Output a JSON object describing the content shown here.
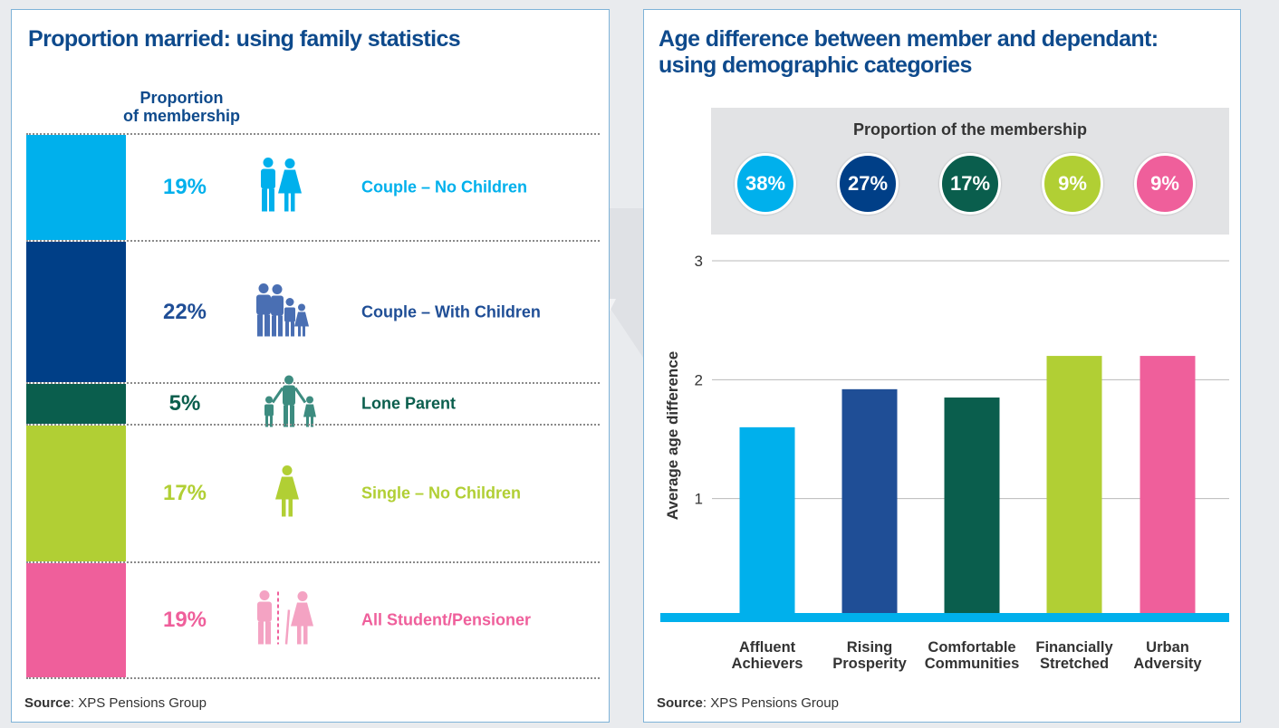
{
  "left": {
    "title": "Proportion married: using family statistics",
    "column_header_line1": "Proportion",
    "column_header_line2": "of membership",
    "source_label": "Source",
    "source_text": ": XPS Pensions Group",
    "rows": [
      {
        "pct": "19%",
        "label": "Couple – No Children",
        "color": "#00b0ec",
        "icon": "couple-icon"
      },
      {
        "pct": "22%",
        "label": "Couple – With Children",
        "color": "#003f87",
        "icon": "family-icon"
      },
      {
        "pct": "5%",
        "label": "Lone Parent",
        "color": "#0a5e4d",
        "icon": "lone-parent-icon"
      },
      {
        "pct": "17%",
        "label": "Single – No Children",
        "color": "#b1cf34",
        "icon": "single-person-icon"
      },
      {
        "pct": "19%",
        "label": "All Student/Pensioner",
        "color": "#ef5f9b",
        "icon": "student-pensioner-icon"
      }
    ]
  },
  "right": {
    "title_line1": "Age difference between member and dependant:",
    "title_line2": "using demographic categories",
    "proportion_title": "Proportion of the membership",
    "proportions": [
      {
        "value": "38%",
        "color": "#00b0ec"
      },
      {
        "value": "27%",
        "color": "#003f87"
      },
      {
        "value": "17%",
        "color": "#0a5e4d"
      },
      {
        "value": "9%",
        "color": "#b1cf34"
      },
      {
        "value": "9%",
        "color": "#ef5f9b"
      }
    ],
    "source_label": "Source",
    "source_text": ": XPS Pensions Group"
  },
  "chart_data": [
    {
      "type": "bar",
      "title": "Age difference between member and dependant: using demographic categories",
      "ylabel": "Average age difference",
      "xlabel": "",
      "ylim": [
        0,
        3
      ],
      "yticks": [
        "1",
        "2",
        "3"
      ],
      "grid": true,
      "categories": [
        [
          "Affluent",
          "Achievers"
        ],
        [
          "Rising",
          "Prosperity"
        ],
        [
          "Comfortable",
          "Communities"
        ],
        [
          "Financially",
          "Stretched"
        ],
        [
          "Urban",
          "Adversity"
        ]
      ],
      "values": [
        1.6,
        1.92,
        1.85,
        2.2,
        2.2
      ],
      "colors": [
        "#00b0ec",
        "#1f4e96",
        "#0a5e4d",
        "#b1cf34",
        "#ef5f9b"
      ]
    }
  ]
}
